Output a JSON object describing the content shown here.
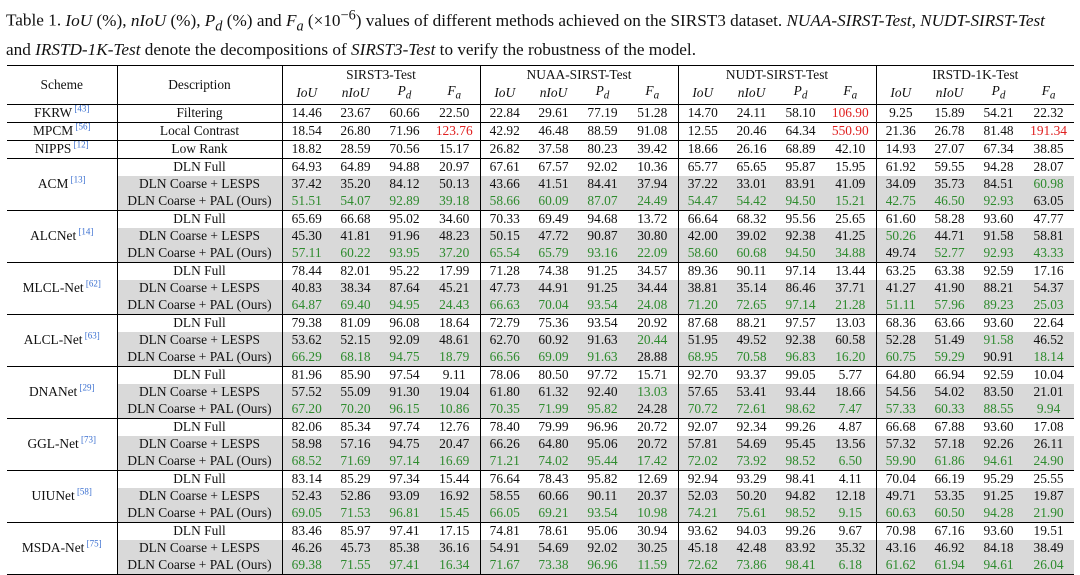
{
  "caption": {
    "prefix": "Table 1.",
    "text_html": "<i>IoU</i> (%), <i>nIoU</i> (%), <i>P<sub>d</sub></i> (%) and <i>F<sub>a</sub></i> (×10<sup>−6</sup>) values of different methods achieved on the SIRST3 dataset. <i>NUAA-SIRST-Test</i>, <i>NUDT-SIRST-Test</i> and <i>IRSTD-1K-Test</i> denote the decompositions of <i>SIRST3-Test</i> to verify the robustness of the model."
  },
  "header": {
    "scheme": "Scheme",
    "description": "Description",
    "datasets": [
      "SIRST3-Test",
      "NUAA-SIRST-Test",
      "NUDT-SIRST-Test",
      "IRSTD-1K-Test"
    ],
    "metrics_html": [
      "IoU",
      "nIoU",
      "P<sub>d</sub>",
      "F<sub>a</sub>"
    ]
  },
  "color_codes": {
    "red": "#e02020",
    "green": "#2e8b2e",
    "ours_bg": "#d9d9d9",
    "ref": "#3a6fd0"
  },
  "groups": [
    {
      "scheme": "FKRW",
      "ref": "43",
      "rows": [
        {
          "desc": "Filtering",
          "vals": [
            "14.46",
            "23.67",
            "60.66",
            "22.50",
            "22.84",
            "29.61",
            "77.19",
            "51.28",
            "14.70",
            "24.11",
            "58.10",
            "106.90",
            "9.25",
            "15.89",
            "54.21",
            "22.32"
          ],
          "red": [
            11
          ]
        }
      ]
    },
    {
      "scheme": "MPCM",
      "ref": "56",
      "rows": [
        {
          "desc": "Local Contrast",
          "vals": [
            "18.54",
            "26.80",
            "71.96",
            "123.76",
            "42.92",
            "46.48",
            "88.59",
            "91.08",
            "12.55",
            "20.46",
            "64.34",
            "550.90",
            "21.36",
            "26.78",
            "81.48",
            "191.34"
          ],
          "red": [
            3,
            11,
            15
          ]
        }
      ]
    },
    {
      "scheme": "NIPPS",
      "ref": "12",
      "rows": [
        {
          "desc": "Low Rank",
          "vals": [
            "18.82",
            "28.59",
            "70.56",
            "15.17",
            "26.82",
            "37.58",
            "80.23",
            "39.42",
            "18.66",
            "26.16",
            "68.89",
            "42.10",
            "14.93",
            "27.07",
            "67.34",
            "38.85"
          ]
        }
      ]
    },
    {
      "scheme": "ACM",
      "ref": "13",
      "rows": [
        {
          "desc": "DLN Full",
          "vals": [
            "64.93",
            "64.89",
            "94.88",
            "20.97",
            "67.61",
            "67.57",
            "92.02",
            "10.36",
            "65.77",
            "65.65",
            "95.87",
            "15.95",
            "61.92",
            "59.55",
            "94.28",
            "28.07"
          ]
        },
        {
          "desc": "DLN Coarse + LESPS",
          "shade": true,
          "vals": [
            "37.42",
            "35.20",
            "84.12",
            "50.13",
            "43.66",
            "41.51",
            "84.41",
            "37.94",
            "37.22",
            "33.01",
            "83.91",
            "41.09",
            "34.09",
            "35.73",
            "84.51",
            "60.98"
          ],
          "green": [
            15
          ]
        },
        {
          "desc": "DLN Coarse + PAL (Ours)",
          "shade": true,
          "vals": [
            "51.51",
            "54.07",
            "92.89",
            "39.18",
            "58.66",
            "60.09",
            "87.07",
            "24.49",
            "54.47",
            "54.42",
            "94.50",
            "15.21",
            "42.75",
            "46.50",
            "92.93",
            "63.05"
          ],
          "green": [
            0,
            1,
            2,
            3,
            4,
            5,
            6,
            7,
            8,
            9,
            10,
            11,
            12,
            13,
            14
          ]
        }
      ]
    },
    {
      "scheme": "ALCNet",
      "ref": "14",
      "rows": [
        {
          "desc": "DLN Full",
          "vals": [
            "65.69",
            "66.68",
            "95.02",
            "34.60",
            "70.33",
            "69.49",
            "94.68",
            "13.72",
            "66.64",
            "68.32",
            "95.56",
            "25.65",
            "61.60",
            "58.28",
            "93.60",
            "47.77"
          ]
        },
        {
          "desc": "DLN Coarse + LESPS",
          "shade": true,
          "vals": [
            "45.30",
            "41.81",
            "91.96",
            "48.23",
            "50.15",
            "47.72",
            "90.87",
            "30.80",
            "42.00",
            "39.02",
            "92.38",
            "41.25",
            "50.26",
            "44.71",
            "91.58",
            "58.81"
          ],
          "green": [
            12
          ]
        },
        {
          "desc": "DLN Coarse + PAL (Ours)",
          "shade": true,
          "vals": [
            "57.11",
            "60.22",
            "93.95",
            "37.20",
            "65.54",
            "65.79",
            "93.16",
            "22.09",
            "58.60",
            "60.68",
            "94.50",
            "34.88",
            "49.74",
            "52.77",
            "92.93",
            "43.33"
          ],
          "green": [
            0,
            1,
            2,
            3,
            4,
            5,
            6,
            7,
            8,
            9,
            10,
            11,
            13,
            14,
            15
          ]
        }
      ]
    },
    {
      "scheme": "MLCL-Net",
      "ref": "62",
      "rows": [
        {
          "desc": "DLN Full",
          "vals": [
            "78.44",
            "82.01",
            "95.22",
            "17.99",
            "71.28",
            "74.38",
            "91.25",
            "34.57",
            "89.36",
            "90.11",
            "97.14",
            "13.44",
            "63.25",
            "63.38",
            "92.59",
            "17.16"
          ]
        },
        {
          "desc": "DLN Coarse + LESPS",
          "shade": true,
          "vals": [
            "40.83",
            "38.34",
            "87.64",
            "45.21",
            "47.73",
            "44.91",
            "91.25",
            "34.44",
            "38.81",
            "35.14",
            "86.46",
            "37.71",
            "41.27",
            "41.90",
            "88.21",
            "54.37"
          ]
        },
        {
          "desc": "DLN Coarse + PAL (Ours)",
          "shade": true,
          "vals": [
            "64.87",
            "69.40",
            "94.95",
            "24.43",
            "66.63",
            "70.04",
            "93.54",
            "24.08",
            "71.20",
            "72.65",
            "97.14",
            "21.28",
            "51.11",
            "57.96",
            "89.23",
            "25.03"
          ],
          "green": [
            0,
            1,
            2,
            3,
            4,
            5,
            6,
            7,
            8,
            9,
            10,
            11,
            12,
            13,
            14,
            15
          ]
        }
      ]
    },
    {
      "scheme": "ALCL-Net",
      "ref": "63",
      "rows": [
        {
          "desc": "DLN Full",
          "vals": [
            "79.38",
            "81.09",
            "96.08",
            "18.64",
            "72.79",
            "75.36",
            "93.54",
            "20.92",
            "87.68",
            "88.21",
            "97.57",
            "13.03",
            "68.36",
            "63.66",
            "93.60",
            "22.64"
          ]
        },
        {
          "desc": "DLN Coarse + LESPS",
          "shade": true,
          "vals": [
            "53.62",
            "52.15",
            "92.09",
            "48.61",
            "62.70",
            "60.92",
            "91.63",
            "20.44",
            "51.95",
            "49.52",
            "92.38",
            "60.58",
            "52.28",
            "51.49",
            "91.58",
            "46.52"
          ],
          "green": [
            7,
            14
          ]
        },
        {
          "desc": "DLN Coarse + PAL (Ours)",
          "shade": true,
          "vals": [
            "66.29",
            "68.18",
            "94.75",
            "18.79",
            "66.56",
            "69.09",
            "91.63",
            "28.88",
            "68.95",
            "70.58",
            "96.83",
            "16.20",
            "60.75",
            "59.29",
            "90.91",
            "18.14"
          ],
          "green": [
            0,
            1,
            2,
            3,
            4,
            5,
            6,
            8,
            9,
            10,
            11,
            12,
            13,
            15
          ]
        }
      ]
    },
    {
      "scheme": "DNANet",
      "ref": "29",
      "rows": [
        {
          "desc": "DLN Full",
          "vals": [
            "81.96",
            "85.90",
            "97.54",
            "9.11",
            "78.06",
            "80.50",
            "97.72",
            "15.71",
            "92.70",
            "93.37",
            "99.05",
            "5.77",
            "64.80",
            "66.94",
            "92.59",
            "10.04"
          ]
        },
        {
          "desc": "DLN Coarse + LESPS",
          "shade": true,
          "vals": [
            "57.52",
            "55.09",
            "91.30",
            "19.04",
            "61.80",
            "61.32",
            "92.40",
            "13.03",
            "57.65",
            "53.41",
            "93.44",
            "18.66",
            "54.56",
            "54.02",
            "83.50",
            "21.01"
          ],
          "green": [
            7
          ]
        },
        {
          "desc": "DLN Coarse + PAL (Ours)",
          "shade": true,
          "vals": [
            "67.20",
            "70.20",
            "96.15",
            "10.86",
            "70.35",
            "71.99",
            "95.82",
            "24.28",
            "70.72",
            "72.61",
            "98.62",
            "7.47",
            "57.33",
            "60.33",
            "88.55",
            "9.94"
          ],
          "green": [
            0,
            1,
            2,
            3,
            4,
            5,
            6,
            8,
            9,
            10,
            11,
            12,
            13,
            14,
            15
          ]
        }
      ]
    },
    {
      "scheme": "GGL-Net",
      "ref": "73",
      "rows": [
        {
          "desc": "DLN Full",
          "vals": [
            "82.06",
            "85.34",
            "97.74",
            "12.76",
            "78.40",
            "79.99",
            "96.96",
            "20.72",
            "92.07",
            "92.34",
            "99.26",
            "4.87",
            "66.68",
            "67.88",
            "93.60",
            "17.08"
          ]
        },
        {
          "desc": "DLN Coarse + LESPS",
          "shade": true,
          "vals": [
            "58.98",
            "57.16",
            "94.75",
            "20.47",
            "66.26",
            "64.80",
            "95.06",
            "20.72",
            "57.81",
            "54.69",
            "95.45",
            "13.56",
            "57.32",
            "57.18",
            "92.26",
            "26.11"
          ]
        },
        {
          "desc": "DLN Coarse + PAL (Ours)",
          "shade": true,
          "vals": [
            "68.52",
            "71.69",
            "97.14",
            "16.69",
            "71.21",
            "74.02",
            "95.44",
            "17.42",
            "72.02",
            "73.92",
            "98.52",
            "6.50",
            "59.90",
            "61.86",
            "94.61",
            "24.90"
          ],
          "green": [
            0,
            1,
            2,
            3,
            4,
            5,
            6,
            7,
            8,
            9,
            10,
            11,
            12,
            13,
            14,
            15
          ]
        }
      ]
    },
    {
      "scheme": "UIUNet",
      "ref": "58",
      "rows": [
        {
          "desc": "DLN Full",
          "vals": [
            "83.14",
            "85.29",
            "97.34",
            "15.44",
            "76.64",
            "78.43",
            "95.82",
            "12.69",
            "92.94",
            "93.29",
            "98.41",
            "4.11",
            "70.04",
            "66.19",
            "95.29",
            "25.55"
          ]
        },
        {
          "desc": "DLN Coarse + LESPS",
          "shade": true,
          "vals": [
            "52.43",
            "52.86",
            "93.09",
            "16.92",
            "58.55",
            "60.66",
            "90.11",
            "20.37",
            "52.03",
            "50.20",
            "94.82",
            "12.18",
            "49.71",
            "53.35",
            "91.25",
            "19.87"
          ]
        },
        {
          "desc": "DLN Coarse + PAL (Ours)",
          "shade": true,
          "vals": [
            "69.05",
            "71.53",
            "96.81",
            "15.45",
            "66.05",
            "69.21",
            "93.54",
            "10.98",
            "74.21",
            "75.61",
            "98.52",
            "9.15",
            "60.63",
            "60.50",
            "94.28",
            "21.90"
          ],
          "green": [
            0,
            1,
            2,
            3,
            4,
            5,
            6,
            7,
            8,
            9,
            10,
            11,
            12,
            13,
            14,
            15
          ]
        }
      ]
    },
    {
      "scheme": "MSDA-Net",
      "ref": "75",
      "rows": [
        {
          "desc": "DLN Full",
          "vals": [
            "83.46",
            "85.97",
            "97.41",
            "17.15",
            "74.81",
            "78.61",
            "95.06",
            "30.94",
            "93.62",
            "94.03",
            "99.26",
            "9.67",
            "70.98",
            "67.16",
            "93.60",
            "19.51"
          ]
        },
        {
          "desc": "DLN Coarse + LESPS",
          "shade": true,
          "vals": [
            "46.26",
            "45.73",
            "85.38",
            "36.16",
            "54.91",
            "54.69",
            "92.02",
            "30.25",
            "45.18",
            "42.48",
            "83.92",
            "35.32",
            "43.16",
            "46.92",
            "84.18",
            "38.49"
          ]
        },
        {
          "desc": "DLN Coarse + PAL (Ours)",
          "shade": true,
          "vals": [
            "69.38",
            "71.55",
            "97.41",
            "16.34",
            "71.67",
            "73.38",
            "96.96",
            "11.59",
            "72.62",
            "73.86",
            "98.41",
            "6.18",
            "61.62",
            "61.94",
            "94.61",
            "26.04"
          ],
          "green": [
            0,
            1,
            2,
            3,
            4,
            5,
            6,
            7,
            8,
            9,
            10,
            11,
            12,
            13,
            14,
            15
          ]
        }
      ]
    }
  ]
}
